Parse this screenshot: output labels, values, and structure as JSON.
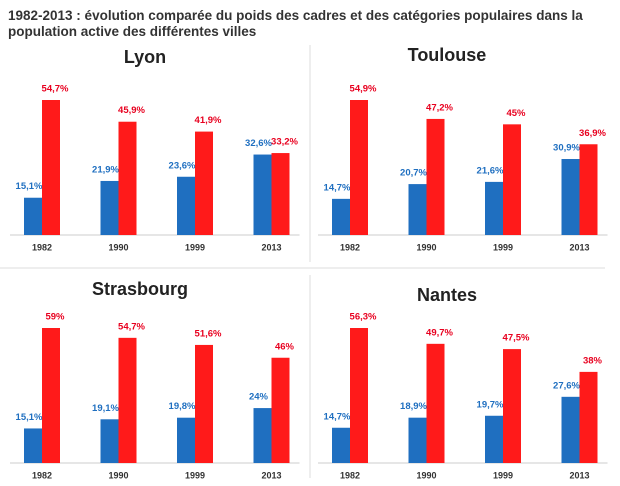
{
  "title": "1982-2013 : évolution comparée du poids des cadres et des catégories populaires dans la population active des différentes villes",
  "chart_data": [
    {
      "type": "bar",
      "title": "Lyon",
      "categories": [
        "1982",
        "1990",
        "1999",
        "2013"
      ],
      "series": [
        {
          "color": "#1f6fc0",
          "values": [
            15.1,
            21.9,
            23.6,
            32.6
          ],
          "value_labels": [
            "15,1%",
            "21,9%",
            "23,6%",
            "32,6%"
          ]
        },
        {
          "color": "#ff1a1a",
          "values": [
            54.7,
            45.9,
            41.9,
            33.2
          ],
          "value_labels": [
            "54,7%",
            "45,9%",
            "41,9%",
            "33,2%"
          ]
        }
      ]
    },
    {
      "type": "bar",
      "title": "Toulouse",
      "categories": [
        "1982",
        "1990",
        "1999",
        "2013"
      ],
      "series": [
        {
          "color": "#1f6fc0",
          "values": [
            14.7,
            20.7,
            21.6,
            30.9
          ],
          "value_labels": [
            "14,7%",
            "20,7%",
            "21,6%",
            "30,9%"
          ]
        },
        {
          "color": "#ff1a1a",
          "values": [
            54.9,
            47.2,
            45,
            36.9
          ],
          "value_labels": [
            "54,9%",
            "47,2%",
            "45%",
            "36,9%"
          ]
        }
      ]
    },
    {
      "type": "bar",
      "title": "Strasbourg",
      "categories": [
        "1982",
        "1990",
        "1999",
        "2013"
      ],
      "series": [
        {
          "color": "#1f6fc0",
          "values": [
            15.1,
            19.1,
            19.8,
            24
          ],
          "value_labels": [
            "15,1%",
            "19,1%",
            "19,8%",
            "24%"
          ]
        },
        {
          "color": "#ff1a1a",
          "values": [
            59,
            54.7,
            51.6,
            46
          ],
          "value_labels": [
            "59%",
            "54,7%",
            "51,6%",
            "46%"
          ]
        }
      ]
    },
    {
      "type": "bar",
      "title": "Nantes",
      "categories": [
        "1982",
        "1990",
        "1999",
        "2013"
      ],
      "series": [
        {
          "color": "#1f6fc0",
          "values": [
            14.7,
            18.9,
            19.7,
            27.6
          ],
          "value_labels": [
            "14,7%",
            "18,9%",
            "19,7%",
            "27,6%"
          ]
        },
        {
          "color": "#ff1a1a",
          "values": [
            56.3,
            49.7,
            47.5,
            38
          ],
          "value_labels": [
            "56,3%",
            "49,7%",
            "47,5%",
            "38%"
          ]
        }
      ]
    }
  ]
}
